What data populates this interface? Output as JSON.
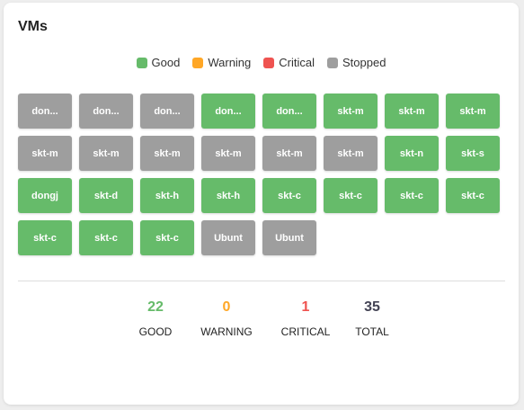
{
  "card": {
    "title": "VMs"
  },
  "colors": {
    "good": "#66bb6a",
    "warning": "#ffa726",
    "critical": "#ef5350",
    "stopped": "#9e9e9e",
    "total": "#444455"
  },
  "legend": [
    {
      "label": "Good",
      "color": "#66bb6a"
    },
    {
      "label": "Warning",
      "color": "#ffa726"
    },
    {
      "label": "Critical",
      "color": "#ef5350"
    },
    {
      "label": "Stopped",
      "color": "#9e9e9e"
    }
  ],
  "vms": [
    {
      "label": "don...",
      "status": "stopped"
    },
    {
      "label": "don...",
      "status": "stopped"
    },
    {
      "label": "don...",
      "status": "stopped"
    },
    {
      "label": "don...",
      "status": "good"
    },
    {
      "label": "don...",
      "status": "good"
    },
    {
      "label": "skt-m",
      "status": "good"
    },
    {
      "label": "skt-m",
      "status": "good"
    },
    {
      "label": "skt-m",
      "status": "good"
    },
    {
      "label": "skt-m",
      "status": "stopped"
    },
    {
      "label": "skt-m",
      "status": "stopped"
    },
    {
      "label": "skt-m",
      "status": "stopped"
    },
    {
      "label": "skt-m",
      "status": "stopped"
    },
    {
      "label": "skt-m",
      "status": "stopped"
    },
    {
      "label": "skt-m",
      "status": "stopped"
    },
    {
      "label": "skt-n",
      "status": "good"
    },
    {
      "label": "skt-s",
      "status": "good"
    },
    {
      "label": "dongj",
      "status": "good"
    },
    {
      "label": "skt-d",
      "status": "good"
    },
    {
      "label": "skt-h",
      "status": "good"
    },
    {
      "label": "skt-h",
      "status": "good"
    },
    {
      "label": "skt-c",
      "status": "good"
    },
    {
      "label": "skt-c",
      "status": "good"
    },
    {
      "label": "skt-c",
      "status": "good"
    },
    {
      "label": "skt-c",
      "status": "good"
    },
    {
      "label": "skt-c",
      "status": "good"
    },
    {
      "label": "skt-c",
      "status": "good"
    },
    {
      "label": "skt-c",
      "status": "good"
    },
    {
      "label": "Ubunt",
      "status": "stopped"
    },
    {
      "label": "Ubunt",
      "status": "stopped"
    }
  ],
  "stats": [
    {
      "value": "22",
      "label": "GOOD",
      "color": "#66bb6a"
    },
    {
      "value": "0",
      "label": "WARNING",
      "color": "#ffa726"
    },
    {
      "value": "1",
      "label": "CRITICAL",
      "color": "#ef5350"
    },
    {
      "value": "35",
      "label": "TOTAL",
      "color": "#444455"
    }
  ]
}
